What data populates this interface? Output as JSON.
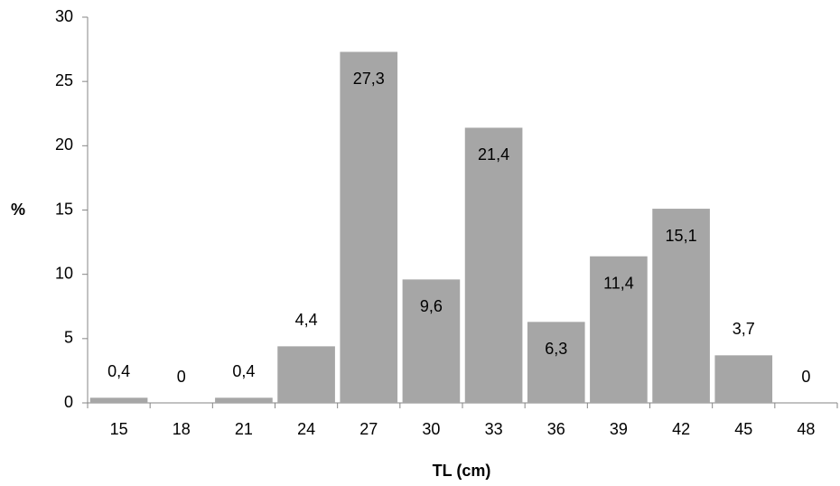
{
  "chart_data": {
    "type": "bar",
    "categories": [
      "15",
      "18",
      "21",
      "24",
      "27",
      "30",
      "33",
      "36",
      "39",
      "42",
      "45",
      "48"
    ],
    "values": [
      0.4,
      0,
      0.4,
      4.4,
      27.3,
      9.6,
      21.4,
      6.3,
      11.4,
      15.1,
      3.7,
      0
    ],
    "value_labels": [
      "0,4",
      "0",
      "0,4",
      "4,4",
      "27,3",
      "9,6",
      "21,4",
      "6,3",
      "11,4",
      "15,1",
      "3,7",
      "0"
    ],
    "color": "#a6a6a6",
    "ylim": [
      0,
      30
    ],
    "yticks": [
      0,
      5,
      10,
      15,
      20,
      25,
      30
    ],
    "ylabel": "%",
    "xlabel": "TL (cm)"
  }
}
